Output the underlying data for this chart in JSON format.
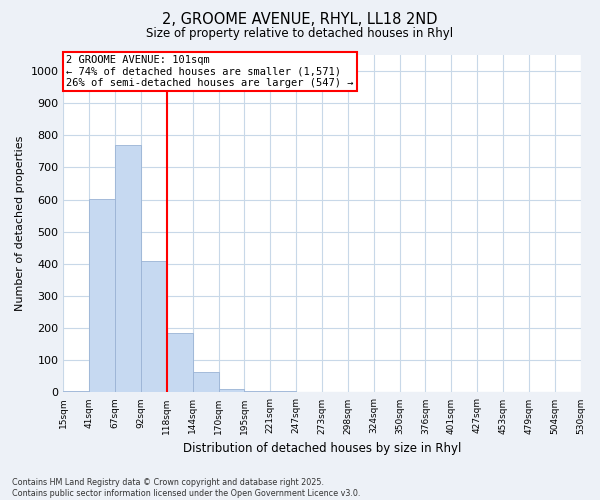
{
  "title_line1": "2, GROOME AVENUE, RHYL, LL18 2ND",
  "title_line2": "Size of property relative to detached houses in Rhyl",
  "xlabel": "Distribution of detached houses by size in Rhyl",
  "ylabel": "Number of detached properties",
  "bar_values": [
    3,
    601,
    770,
    410,
    185,
    65,
    10,
    5,
    3,
    0,
    0,
    0,
    0,
    0,
    0,
    0,
    0,
    0,
    0,
    0
  ],
  "bar_labels": [
    "15sqm",
    "41sqm",
    "67sqm",
    "92sqm",
    "118sqm",
    "144sqm",
    "170sqm",
    "195sqm",
    "221sqm",
    "247sqm",
    "273sqm",
    "298sqm",
    "324sqm",
    "350sqm",
    "376sqm",
    "401sqm",
    "427sqm",
    "453sqm",
    "479sqm",
    "504sqm",
    "530sqm"
  ],
  "bar_color": "#c6d9f1",
  "bar_edgecolor": "#9ab3d5",
  "grid_color": "#c8d8e8",
  "annotation_line1": "2 GROOME AVENUE: 101sqm",
  "annotation_line2": "← 74% of detached houses are smaller (1,571)",
  "annotation_line3": "26% of semi-detached houses are larger (547) →",
  "annotation_box_color": "red",
  "vline_x": 3.5,
  "vline_color": "red",
  "ylim": [
    0,
    1050
  ],
  "yticks": [
    0,
    100,
    200,
    300,
    400,
    500,
    600,
    700,
    800,
    900,
    1000
  ],
  "footer_line1": "Contains HM Land Registry data © Crown copyright and database right 2025.",
  "footer_line2": "Contains public sector information licensed under the Open Government Licence v3.0.",
  "background_color": "#edf1f7",
  "plot_bg_color": "#ffffff"
}
